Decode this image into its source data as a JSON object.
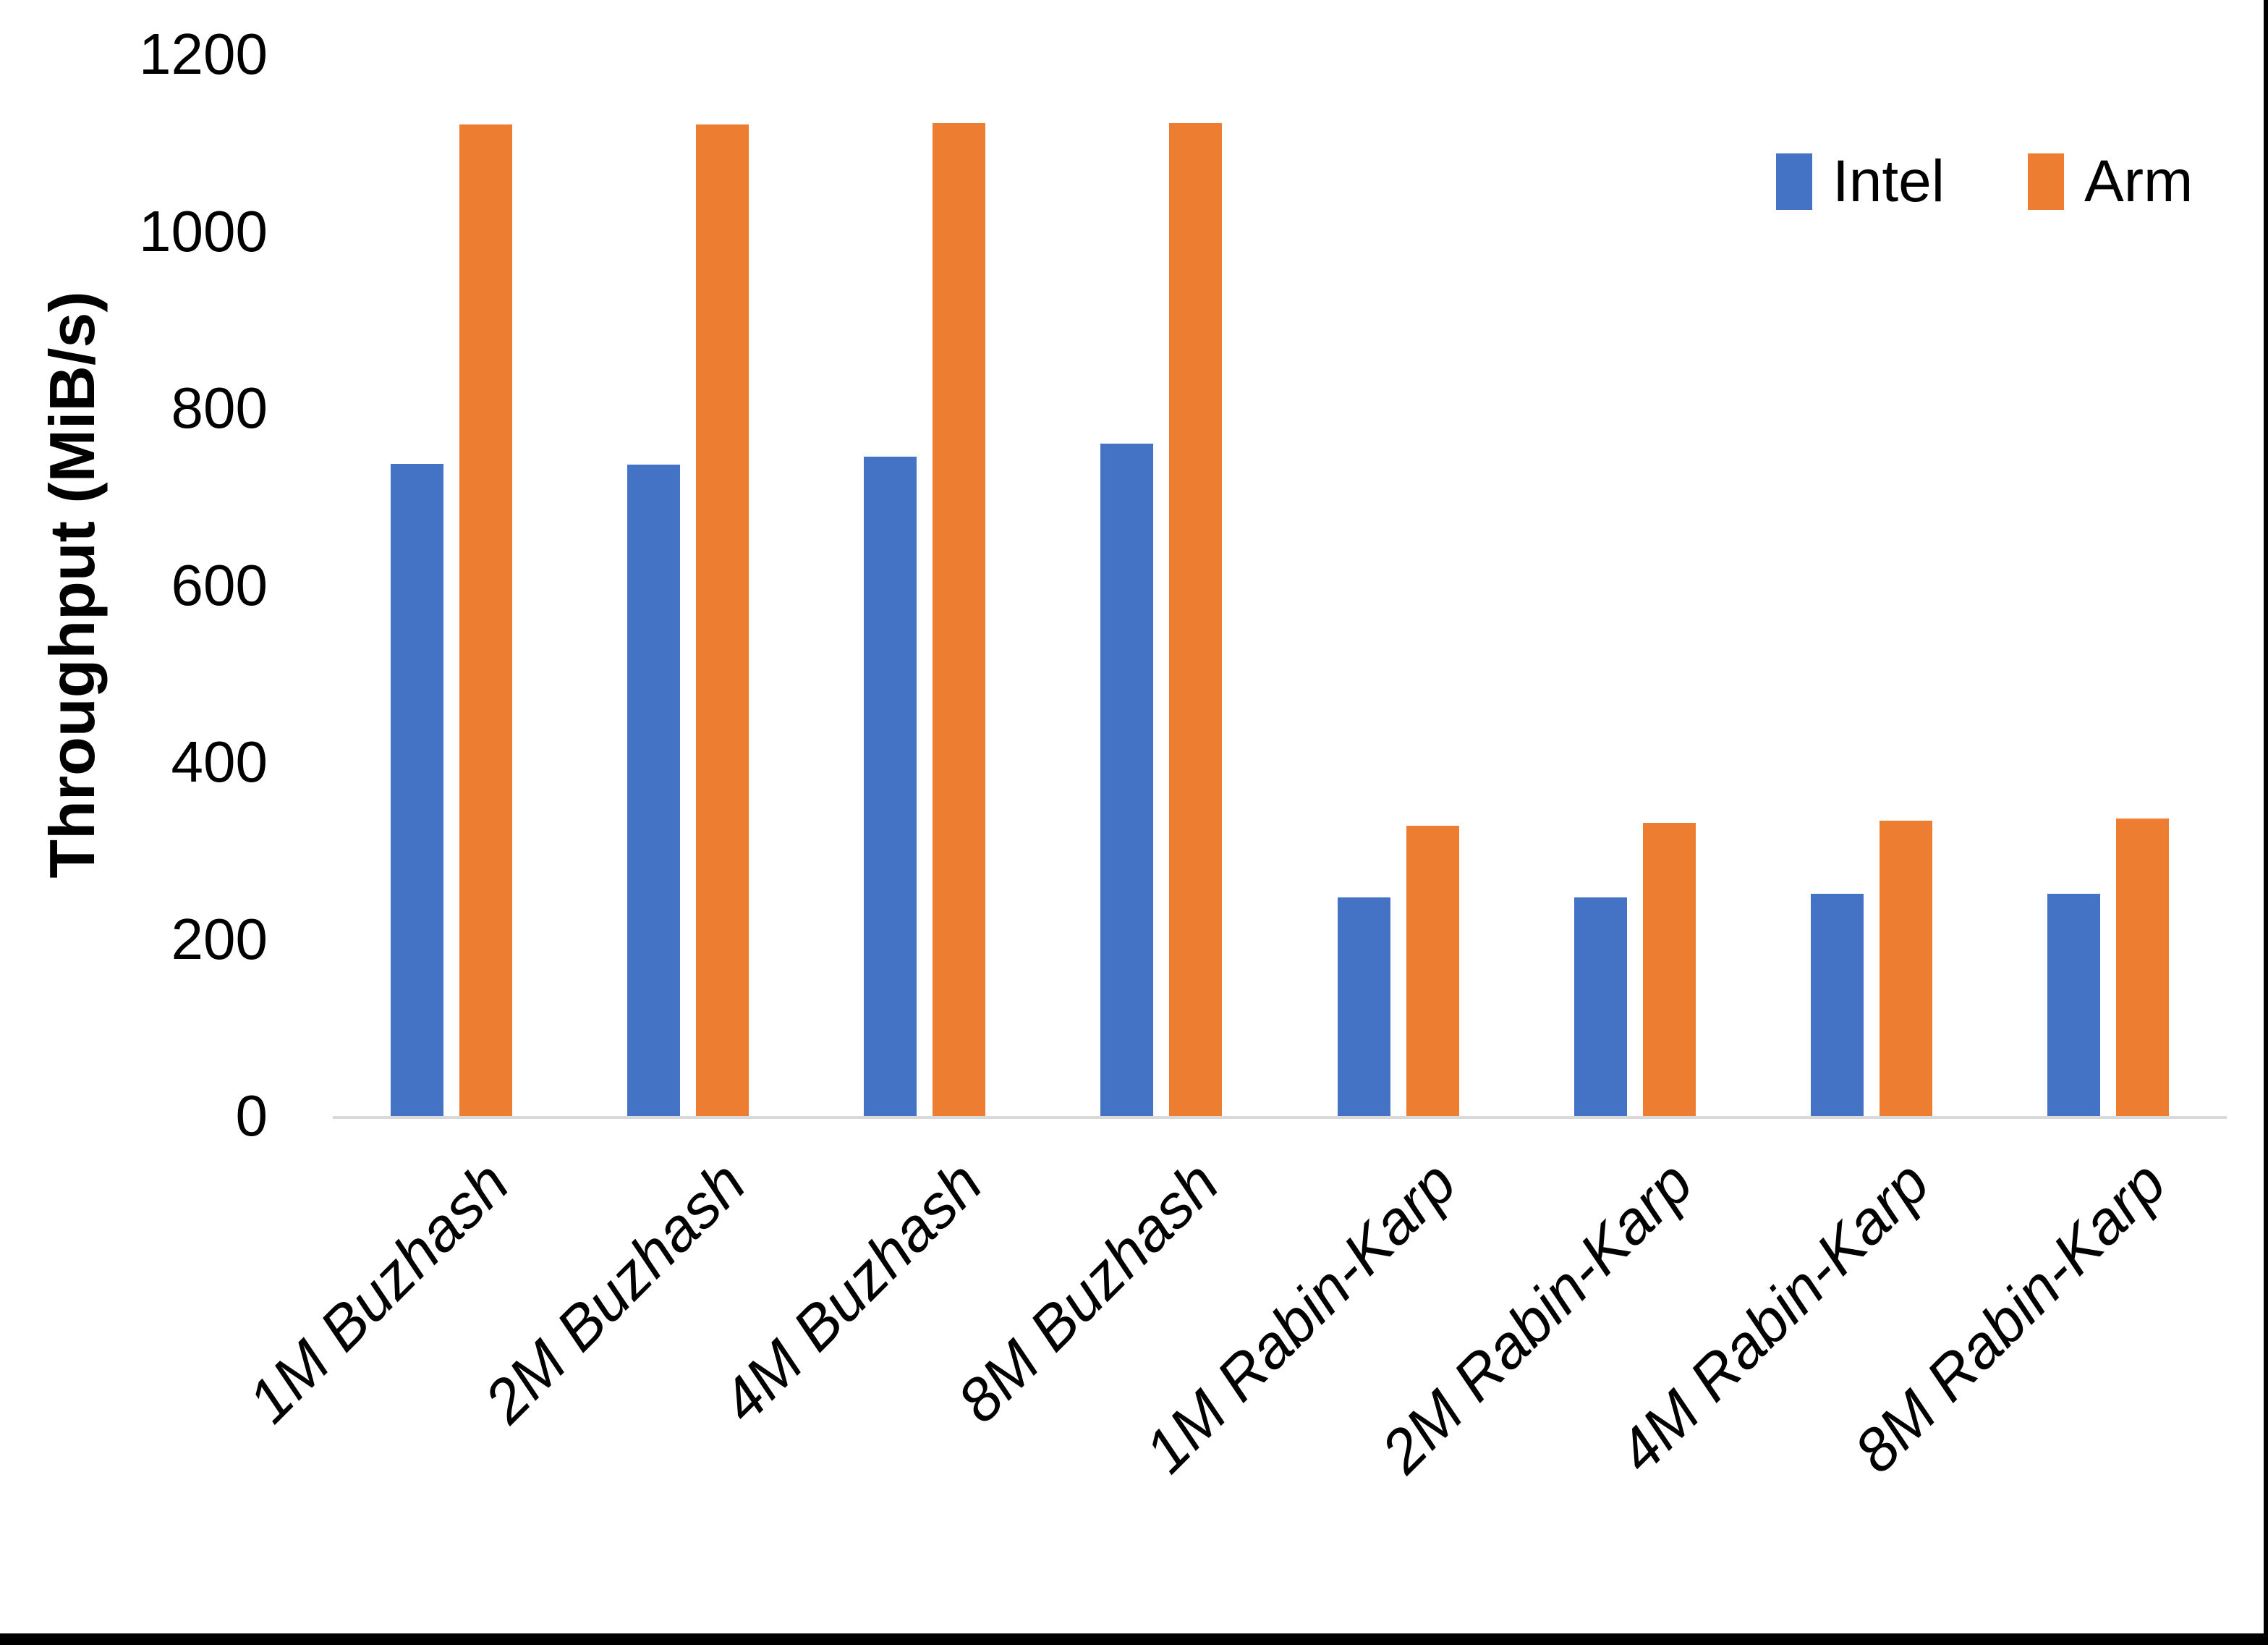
{
  "chart_data": {
    "type": "bar",
    "title": "",
    "xlabel": "",
    "ylabel": "Throughput (MiB/s)",
    "categories": [
      "1M Buzhash",
      "2M Buzhash",
      "4M Buzhash",
      "8M Buzhash",
      "1M Rabin-Karp",
      "2M Rabin-Karp",
      "4M Rabin-Karp",
      "8M Rabin-Karp"
    ],
    "series": [
      {
        "name": "Intel",
        "color": "#4472C4",
        "values": [
          737,
          736,
          745,
          760,
          247,
          247,
          251,
          251
        ]
      },
      {
        "name": "Arm",
        "color": "#ED7D31",
        "values": [
          1121,
          1121,
          1122,
          1122,
          328,
          331,
          334,
          336
        ]
      }
    ],
    "ylim": [
      0,
      1200
    ],
    "yticks": [
      1200,
      1000,
      800,
      600,
      400,
      200,
      0
    ],
    "grid": false,
    "legend_position": "top-right",
    "x_label_rotation_deg": 45,
    "x_label_style": "italic"
  },
  "colors": {
    "background": "#FFFFFF",
    "axis_line": "#D9D9D9",
    "text": "#000000",
    "frame_border": "#000000"
  }
}
